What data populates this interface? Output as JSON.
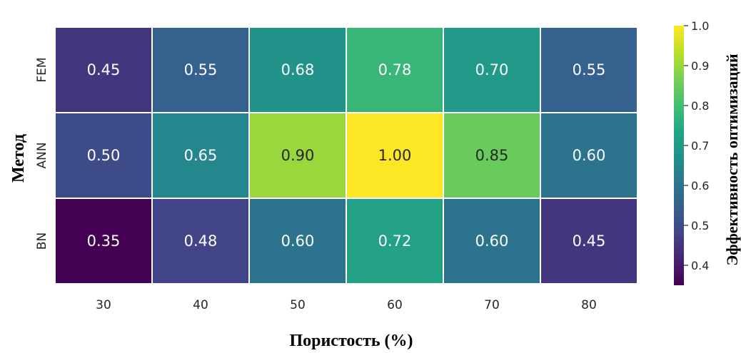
{
  "chart_data": {
    "type": "heatmap",
    "x_label": "Пористость (%)",
    "y_label": "Метод",
    "colorbar_label": "Эффективность оптимизаций",
    "x_categories": [
      "30",
      "40",
      "50",
      "60",
      "70",
      "80"
    ],
    "y_categories": [
      "FEM",
      "ANN",
      "BN"
    ],
    "values": [
      [
        0.45,
        0.55,
        0.68,
        0.78,
        0.7,
        0.55
      ],
      [
        0.5,
        0.65,
        0.9,
        1.0,
        0.85,
        0.6
      ],
      [
        0.35,
        0.48,
        0.6,
        0.72,
        0.6,
        0.45
      ]
    ],
    "value_format": "0.00",
    "colormap": "viridis",
    "vmin": 0.35,
    "vmax": 1.0,
    "colorbar_ticks": [
      0.4,
      0.5,
      0.6,
      0.7,
      0.8,
      0.9,
      1.0
    ],
    "colorbar_placement": "right",
    "cell_border_color": "#ffffff"
  }
}
